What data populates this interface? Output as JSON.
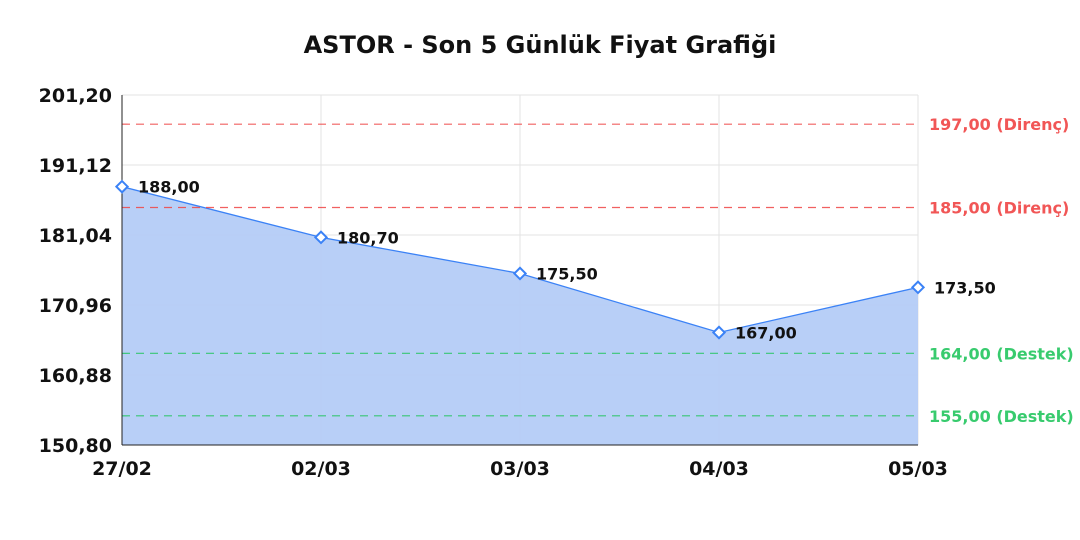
{
  "chart_data": {
    "type": "area",
    "title": "ASTOR - Son 5 Günlük Fiyat Grafiği",
    "xlabel": "",
    "ylabel": "",
    "categories": [
      "27/02",
      "02/03",
      "03/03",
      "04/03",
      "05/03"
    ],
    "values": [
      188.0,
      180.7,
      175.5,
      167.0,
      173.5
    ],
    "data_labels": [
      "188,00",
      "180,70",
      "175,50",
      "167,00",
      "173,50"
    ],
    "ylim": [
      150.8,
      201.2
    ],
    "y_ticks": [
      150.8,
      160.88,
      170.96,
      181.04,
      191.12,
      201.2
    ],
    "y_tick_labels": [
      "150,80",
      "160,88",
      "170,96",
      "181,04",
      "191,12",
      "201,20"
    ],
    "grid": true,
    "legend": "none",
    "reference_lines": [
      {
        "value": 197.0,
        "label": "197,00 (Direnç)",
        "kind": "resistance",
        "color": "#ef4444"
      },
      {
        "value": 185.0,
        "label": "185,00 (Direnç)",
        "kind": "resistance",
        "color": "#ef4444"
      },
      {
        "value": 164.0,
        "label": "164,00 (Destek)",
        "kind": "support",
        "color": "#22c55e"
      },
      {
        "value": 155.0,
        "label": "155,00 (Destek)",
        "kind": "support",
        "color": "#22c55e"
      }
    ],
    "colors": {
      "line": "#3b82f6",
      "fill": "#b4ccf7",
      "grid": "#e3e3e3"
    }
  }
}
